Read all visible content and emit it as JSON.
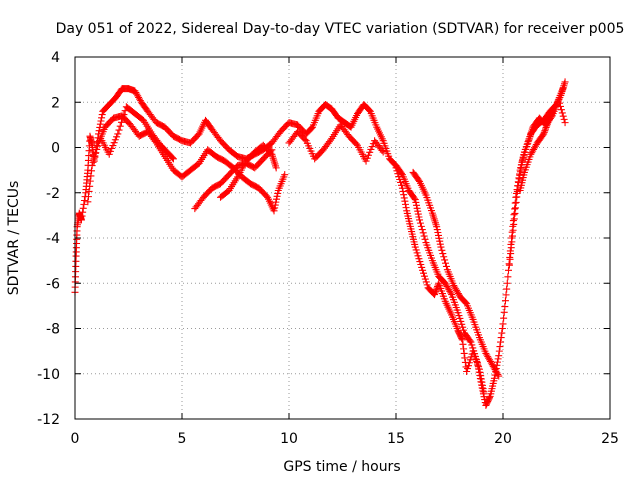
{
  "chart_data": {
    "type": "scatter",
    "title": "Day 051 of 2022, Sidereal Day-to-day VTEC variation (SDTVAR) for receiver p005",
    "xlabel": "GPS time / hours",
    "ylabel": "SDTVAR / TECUs",
    "xlim": [
      0,
      25
    ],
    "ylim": [
      -12,
      4
    ],
    "xticks": [
      0,
      5,
      10,
      15,
      20,
      25
    ],
    "yticks": [
      4,
      2,
      0,
      -2,
      -4,
      -6,
      -8,
      -10,
      -12
    ],
    "grid": true,
    "marker": "+",
    "color": "#ff0000",
    "series": [
      {
        "name": "SDTVAR",
        "tracks": [
          [
            [
              0.0,
              -6.4
            ],
            [
              0.05,
              -4.8
            ],
            [
              0.1,
              -3.5
            ],
            [
              0.2,
              -2.9
            ],
            [
              0.3,
              -3.2
            ],
            [
              0.5,
              -2.0
            ],
            [
              0.6,
              -1.0
            ],
            [
              0.7,
              0.5
            ],
            [
              0.8,
              0.1
            ],
            [
              0.9,
              -0.6
            ],
            [
              1.1,
              0.6
            ],
            [
              1.3,
              1.6
            ],
            [
              1.6,
              1.9
            ],
            [
              1.9,
              2.2
            ],
            [
              2.2,
              2.6
            ],
            [
              2.5,
              2.6
            ],
            [
              2.8,
              2.5
            ],
            [
              3.1,
              2.0
            ],
            [
              3.4,
              1.6
            ],
            [
              3.8,
              1.1
            ],
            [
              4.2,
              0.9
            ],
            [
              4.6,
              0.5
            ],
            [
              5.0,
              0.3
            ],
            [
              5.4,
              0.2
            ],
            [
              5.8,
              0.6
            ],
            [
              6.1,
              1.2
            ],
            [
              6.4,
              0.8
            ],
            [
              6.8,
              0.3
            ],
            [
              7.2,
              -0.1
            ],
            [
              7.6,
              -0.4
            ],
            [
              8.0,
              -0.5
            ],
            [
              8.4,
              -0.3
            ],
            [
              8.8,
              -0.1
            ],
            [
              9.2,
              0.2
            ],
            [
              9.6,
              0.7
            ],
            [
              10.0,
              1.1
            ],
            [
              10.4,
              1.0
            ],
            [
              10.8,
              0.6
            ],
            [
              11.1,
              0.9
            ],
            [
              11.4,
              1.6
            ],
            [
              11.7,
              1.9
            ],
            [
              12.0,
              1.7
            ],
            [
              12.3,
              1.3
            ],
            [
              12.6,
              1.1
            ],
            [
              12.9,
              0.9
            ],
            [
              13.2,
              1.5
            ],
            [
              13.5,
              1.9
            ],
            [
              13.8,
              1.6
            ],
            [
              14.1,
              0.9
            ],
            [
              14.4,
              0.3
            ],
            [
              14.7,
              -0.5
            ],
            [
              15.0,
              -0.8
            ],
            [
              15.3,
              -1.2
            ],
            [
              15.6,
              -1.9
            ],
            [
              15.9,
              -2.3
            ],
            [
              16.1,
              -3.2
            ],
            [
              16.4,
              -4.2
            ],
            [
              16.7,
              -5.0
            ],
            [
              17.0,
              -5.7
            ],
            [
              17.3,
              -6.0
            ],
            [
              17.6,
              -6.5
            ],
            [
              17.9,
              -7.3
            ],
            [
              18.2,
              -8.2
            ],
            [
              18.5,
              -8.6
            ],
            [
              18.8,
              -9.5
            ],
            [
              19.0,
              -10.5
            ],
            [
              19.2,
              -11.4
            ],
            [
              19.4,
              -11.0
            ],
            [
              19.6,
              -10.2
            ],
            [
              19.8,
              -9.2
            ],
            [
              20.0,
              -7.8
            ],
            [
              20.2,
              -6.0
            ],
            [
              20.4,
              -4.0
            ],
            [
              20.6,
              -2.2
            ],
            [
              20.8,
              -1.0
            ],
            [
              21.0,
              -0.2
            ],
            [
              21.3,
              0.6
            ],
            [
              21.6,
              1.0
            ],
            [
              21.9,
              1.2
            ],
            [
              22.2,
              1.6
            ],
            [
              22.5,
              1.9
            ],
            [
              22.8,
              2.6
            ]
          ],
          [
            [
              0.6,
              -2.4
            ],
            [
              0.8,
              -0.8
            ],
            [
              1.1,
              0.2
            ],
            [
              1.4,
              0.9
            ],
            [
              1.8,
              1.3
            ],
            [
              2.2,
              1.4
            ],
            [
              2.6,
              1.0
            ],
            [
              3.0,
              0.5
            ],
            [
              3.4,
              0.7
            ],
            [
              3.8,
              0.2
            ],
            [
              4.2,
              -0.4
            ],
            [
              4.6,
              -1.0
            ],
            [
              5.0,
              -1.3
            ],
            [
              5.4,
              -1.0
            ],
            [
              5.8,
              -0.7
            ],
            [
              6.2,
              -0.1
            ],
            [
              6.6,
              -0.4
            ],
            [
              7.0,
              -0.6
            ],
            [
              7.4,
              -0.9
            ],
            [
              7.8,
              -1.3
            ],
            [
              8.2,
              -1.6
            ],
            [
              8.6,
              -1.8
            ],
            [
              9.0,
              -2.2
            ],
            [
              9.3,
              -2.8
            ],
            [
              9.5,
              -1.9
            ],
            [
              9.8,
              -1.2
            ]
          ],
          [
            [
              1.2,
              0.4
            ],
            [
              1.6,
              -0.3
            ],
            [
              2.0,
              0.6
            ],
            [
              2.4,
              1.8
            ],
            [
              2.8,
              1.5
            ],
            [
              3.2,
              1.2
            ],
            [
              3.6,
              0.6
            ],
            [
              4.0,
              0.1
            ],
            [
              4.3,
              -0.2
            ],
            [
              4.6,
              -0.5
            ]
          ],
          [
            [
              5.6,
              -2.7
            ],
            [
              6.0,
              -2.2
            ],
            [
              6.4,
              -1.8
            ],
            [
              6.8,
              -1.6
            ],
            [
              7.2,
              -1.2
            ],
            [
              7.6,
              -0.8
            ],
            [
              8.0,
              -0.7
            ],
            [
              8.4,
              -0.9
            ],
            [
              8.8,
              -0.5
            ],
            [
              9.2,
              -0.1
            ]
          ],
          [
            [
              6.8,
              -2.2
            ],
            [
              7.2,
              -1.9
            ],
            [
              7.6,
              -1.3
            ],
            [
              8.0,
              -0.6
            ],
            [
              8.4,
              -0.2
            ],
            [
              8.8,
              0.1
            ],
            [
              9.2,
              -0.3
            ],
            [
              9.4,
              -0.9
            ]
          ],
          [
            [
              10.0,
              0.2
            ],
            [
              10.4,
              0.7
            ],
            [
              10.8,
              0.3
            ],
            [
              11.2,
              -0.5
            ],
            [
              11.6,
              -0.1
            ],
            [
              12.0,
              0.4
            ],
            [
              12.4,
              1.0
            ],
            [
              12.8,
              0.5
            ],
            [
              13.2,
              0.1
            ],
            [
              13.6,
              -0.6
            ],
            [
              14.0,
              0.3
            ],
            [
              14.4,
              -0.2
            ]
          ],
          [
            [
              15.0,
              -0.9
            ],
            [
              15.3,
              -1.8
            ],
            [
              15.5,
              -2.8
            ],
            [
              15.7,
              -3.6
            ],
            [
              15.9,
              -4.4
            ],
            [
              16.2,
              -5.3
            ],
            [
              16.5,
              -6.2
            ],
            [
              16.8,
              -6.5
            ],
            [
              17.0,
              -6.0
            ],
            [
              17.3,
              -6.8
            ],
            [
              17.6,
              -7.4
            ],
            [
              17.9,
              -8.1
            ],
            [
              18.1,
              -8.5
            ],
            [
              18.3,
              -9.9
            ],
            [
              18.6,
              -9.0
            ],
            [
              18.9,
              -9.8
            ],
            [
              19.1,
              -10.8
            ]
          ],
          [
            [
              15.8,
              -1.1
            ],
            [
              16.1,
              -1.5
            ],
            [
              16.4,
              -2.1
            ],
            [
              16.7,
              -2.9
            ],
            [
              16.9,
              -3.5
            ],
            [
              17.1,
              -4.4
            ],
            [
              17.4,
              -5.4
            ],
            [
              17.7,
              -6.1
            ],
            [
              18.0,
              -6.6
            ],
            [
              18.3,
              -6.9
            ],
            [
              18.6,
              -7.6
            ],
            [
              18.9,
              -8.4
            ],
            [
              19.2,
              -9.1
            ],
            [
              19.5,
              -9.6
            ],
            [
              19.8,
              -10.1
            ]
          ],
          [
            [
              20.3,
              -5.2
            ],
            [
              20.5,
              -3.4
            ],
            [
              20.7,
              -1.7
            ],
            [
              20.9,
              -0.6
            ],
            [
              21.2,
              0.3
            ],
            [
              21.4,
              0.9
            ],
            [
              21.7,
              1.3
            ],
            [
              22.0,
              1.0
            ],
            [
              22.3,
              1.4
            ],
            [
              22.6,
              2.1
            ],
            [
              22.9,
              1.1
            ]
          ],
          [
            [
              20.8,
              -1.9
            ],
            [
              21.0,
              -1.1
            ],
            [
              21.3,
              -0.3
            ],
            [
              21.6,
              0.2
            ],
            [
              21.9,
              0.6
            ],
            [
              22.1,
              1.1
            ],
            [
              22.4,
              1.7
            ],
            [
              22.7,
              2.3
            ],
            [
              22.9,
              2.9
            ]
          ]
        ]
      }
    ]
  }
}
